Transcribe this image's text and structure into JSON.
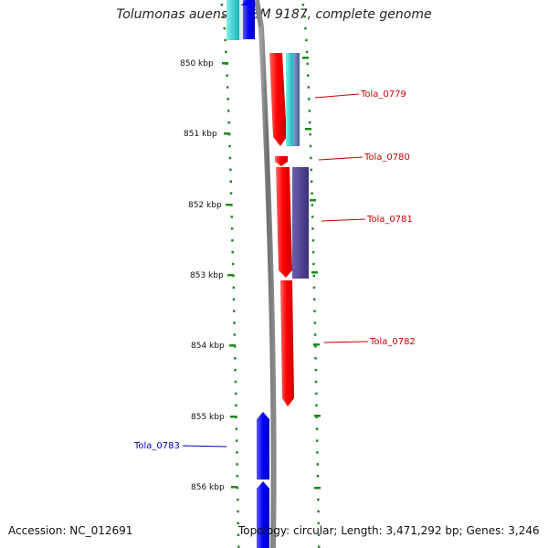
{
  "title": "Tolumonas auensis DSM 9187, complete genome",
  "footer": {
    "accession": "Accession: NC_012691",
    "summary": "Topology: circular; Length: 3,471,292 bp; Genes: 3,246"
  },
  "ruler": {
    "unit": "kbp",
    "ticks": [
      "850 kbp",
      "851 kbp",
      "852 kbp",
      "853 kbp",
      "854 kbp",
      "855 kbp",
      "856 kbp"
    ]
  },
  "genes": [
    {
      "name": "Tola_0779",
      "strand": "forward",
      "color": "#cc0000"
    },
    {
      "name": "Tola_0780",
      "strand": "forward",
      "color": "#cc0000"
    },
    {
      "name": "Tola_0781",
      "strand": "forward",
      "color": "#cc0000"
    },
    {
      "name": "Tola_0782",
      "strand": "forward",
      "color": "#cc0000"
    },
    {
      "name": "Tola_0783",
      "strand": "reverse",
      "color": "#0000bb"
    }
  ],
  "colors": {
    "backbone": "#7a7a7a",
    "forward_cds": "#ff0000",
    "reverse_cds": "#0000ff",
    "feature_cyan": "#1ec8cc",
    "feature_steel": "#5577aa",
    "feature_purple": "#4a3f8c",
    "ruler_green": "#1f8a1f"
  }
}
